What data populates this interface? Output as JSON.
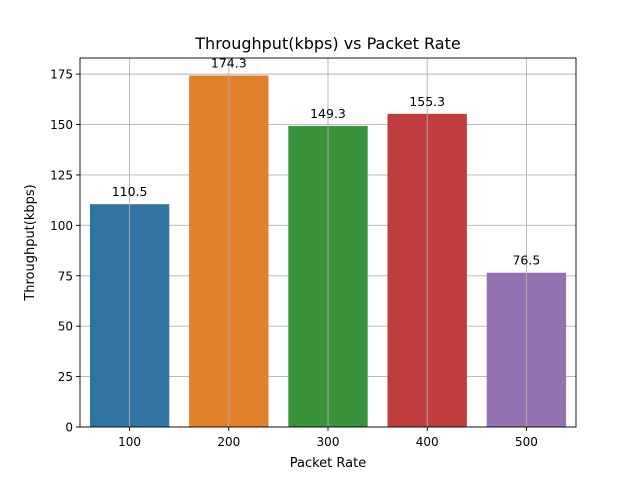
{
  "chart_data": {
    "type": "bar",
    "title": "Throughput(kbps) vs Packet Rate",
    "xlabel": "Packet Rate",
    "ylabel": "Throughput(kbps)",
    "categories": [
      "100",
      "200",
      "300",
      "400",
      "500"
    ],
    "values": [
      110.5,
      174.3,
      149.3,
      155.3,
      76.5
    ],
    "value_labels": [
      "110.5",
      "174.3",
      "149.3",
      "155.3",
      "76.5"
    ],
    "colors": [
      "#3274a1",
      "#e1812c",
      "#3a923a",
      "#c03d3e",
      "#9372b2"
    ],
    "ylim": [
      0,
      183
    ],
    "yticks": [
      0,
      25,
      50,
      75,
      100,
      125,
      150,
      175
    ],
    "ytick_labels": [
      "0",
      "25",
      "50",
      "75",
      "100",
      "125",
      "150",
      "175"
    ],
    "grid": true
  }
}
